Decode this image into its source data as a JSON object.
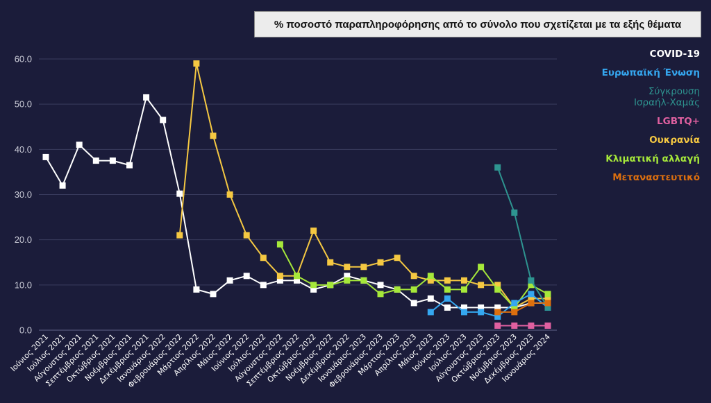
{
  "chart_data": {
    "type": "line",
    "title": "% ποσοστό παραπληροφόρησης από το σύνολο που σχετίζεται με τα εξής θέματα",
    "xlabel": "",
    "ylabel": "",
    "ylim": [
      0,
      60
    ],
    "yticks": [
      "0.0",
      "10.0",
      "20.0",
      "30.0",
      "40.0",
      "50.0",
      "60.0"
    ],
    "ytick_values": [
      0,
      10,
      20,
      30,
      40,
      50,
      60
    ],
    "grid": true,
    "legend_position": "right",
    "categories": [
      "Ιούνιος 2021",
      "Ιούλιος 2021",
      "Αύγουστος 2021",
      "Σεπτέμβριος 2021",
      "Οκτώβριος 2021",
      "Νοέμβριος 2021",
      "Δεκέμβριος 2021",
      "Ιανουάριος 2022",
      "Φεβρουάριος 2022",
      "Μάρτιος 2022",
      "Απρίλιος 2022",
      "Μάιος 2022",
      "Ιούνιος 2022",
      "Ιούλιος 2022",
      "Αύγουστος 2022",
      "Σεπτέμβριος 2022",
      "Οκτώβριος 2022",
      "Νοέμβριος 2022",
      "Δεκέμβριος 2022",
      "Ιανουάριος 2023",
      "Φεβρουάριος 2023",
      "Μάρτιος 2023",
      "Απρίλιος 2023",
      "Μάιος 2023",
      "Ιούνιος 2023",
      "Ιούλιος 2023",
      "Αύγουστος 2023",
      "Οκτώβριος 2023",
      "Νοέμβριος 2023",
      "Δεκέμβριος 2023",
      "Ιανουάριος 2024"
    ],
    "series": [
      {
        "name": "COVID-19",
        "color": "#ffffff",
        "values": [
          38.3,
          32,
          41,
          37.5,
          37.5,
          36.5,
          51.5,
          46.5,
          30.2,
          9,
          8,
          11,
          12,
          10,
          11,
          11,
          9,
          10,
          12,
          11,
          10,
          9,
          6,
          7,
          5,
          5,
          5,
          5,
          5,
          6,
          6
        ]
      },
      {
        "name": "Ουκρανία",
        "color": "#f5c842",
        "values": [
          null,
          null,
          null,
          null,
          null,
          null,
          null,
          null,
          21,
          59,
          43,
          30,
          21,
          16,
          12,
          12,
          22,
          15,
          14,
          14,
          15,
          16,
          12,
          11,
          11,
          11,
          10,
          10,
          5,
          7,
          7
        ]
      },
      {
        "name": "Κλιματική αλλαγή",
        "color": "#a6e83a",
        "values": [
          null,
          null,
          null,
          null,
          null,
          null,
          null,
          null,
          null,
          null,
          null,
          null,
          null,
          null,
          19,
          12,
          10,
          10,
          11,
          11,
          8,
          9,
          9,
          12,
          9,
          9,
          14,
          9,
          5,
          10,
          8
        ]
      },
      {
        "name": "Ευρωπαϊκή Ένωση",
        "color": "#35a7f0",
        "values": [
          null,
          null,
          null,
          null,
          null,
          null,
          null,
          null,
          null,
          null,
          null,
          null,
          null,
          null,
          null,
          null,
          null,
          null,
          null,
          null,
          null,
          null,
          null,
          4,
          7,
          4,
          4,
          3,
          6,
          8,
          5
        ]
      },
      {
        "name": "Μεταναστευτικό",
        "color": "#dd6f0e",
        "values": [
          null,
          null,
          null,
          null,
          null,
          null,
          null,
          null,
          null,
          null,
          null,
          null,
          null,
          null,
          null,
          null,
          null,
          null,
          null,
          null,
          null,
          null,
          null,
          null,
          null,
          null,
          null,
          4,
          4,
          6,
          6
        ]
      },
      {
        "name": "Σύγκρουση Ισραήλ-Χαμάς",
        "color": "#2e9490",
        "values": [
          null,
          null,
          null,
          null,
          null,
          null,
          null,
          null,
          null,
          null,
          null,
          null,
          null,
          null,
          null,
          null,
          null,
          null,
          null,
          null,
          null,
          null,
          null,
          null,
          null,
          null,
          null,
          36,
          26,
          11,
          5
        ]
      },
      {
        "name": "LGBTQ+",
        "color": "#e060a0",
        "values": [
          null,
          null,
          null,
          null,
          null,
          null,
          null,
          null,
          null,
          null,
          null,
          null,
          null,
          null,
          null,
          null,
          null,
          null,
          null,
          null,
          null,
          null,
          null,
          null,
          null,
          null,
          null,
          1,
          1,
          1,
          1
        ]
      }
    ],
    "legend": [
      {
        "line1": "COVID-19",
        "line2": "",
        "color": "#ffffff"
      },
      {
        "line1": "Ευρωπαϊκή Ένωση",
        "line2": "",
        "color": "#35a7f0"
      },
      {
        "line1": "Σύγκρουση",
        "line2": "Ισραήλ-Χαμάς",
        "color": "#2e9490"
      },
      {
        "line1": "LGBTQ+",
        "line2": "",
        "color": "#e060a0"
      },
      {
        "line1": "Ουκρανία",
        "line2": "",
        "color": "#f5c842"
      },
      {
        "line1": "Κλιματική αλλαγή",
        "line2": "",
        "color": "#a6e83a"
      },
      {
        "line1": "Μεταναστευτικό",
        "line2": "",
        "color": "#dd6f0e"
      }
    ]
  },
  "colors": {
    "background": "#1b1c3a",
    "grid": "#3a3c5e",
    "title_box": "#ececec"
  }
}
